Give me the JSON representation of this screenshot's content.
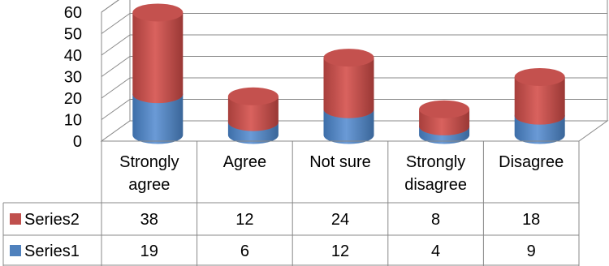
{
  "chart_data": {
    "type": "bar",
    "stacked": true,
    "style": "3d-cylinder",
    "categories": [
      "Strongly agree",
      "Agree",
      "Not sure",
      "Strongly disagree",
      "Disagree"
    ],
    "category_lines": [
      [
        "Strongly",
        "agree"
      ],
      [
        "Agree"
      ],
      [
        "Not sure"
      ],
      [
        "Strongly",
        "disagree"
      ],
      [
        "Disagree"
      ]
    ],
    "series": [
      {
        "name": "Series1",
        "values": [
          19,
          6,
          12,
          4,
          9
        ],
        "color": "#4f81bd"
      },
      {
        "name": "Series2",
        "values": [
          38,
          12,
          24,
          8,
          18
        ],
        "color": "#c0504d"
      }
    ],
    "yticks": [
      0,
      10,
      20,
      30,
      40,
      50,
      60
    ],
    "ylim": [
      0,
      60
    ],
    "grid": true,
    "data_table": true,
    "title": "",
    "xlabel": "",
    "ylabel": ""
  }
}
